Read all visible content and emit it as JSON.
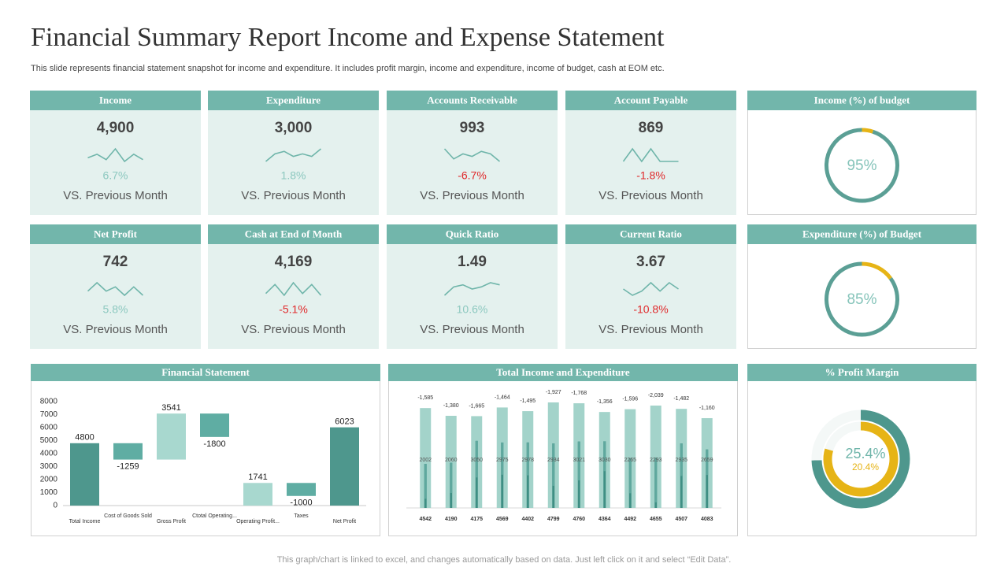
{
  "title": "Financial Summary Report Income and Expense Statement",
  "subtitle": "This slide represents financial statement snapshot for income and expenditure. It includes profit margin, income and expenditure, income of budget, cash at EOM  etc.",
  "kpis": [
    {
      "title": "Income",
      "value": 4900,
      "value_label": "4,900",
      "trend": [
        4,
        6,
        3,
        9,
        2,
        6,
        3
      ],
      "change": 6.7,
      "change_label": "6.7%",
      "caption": "VS. Previous Month"
    },
    {
      "title": "Expenditure",
      "value": 3000,
      "value_label": "3,000",
      "trend": [
        3,
        6,
        7,
        5,
        6,
        5,
        8
      ],
      "change": 1.8,
      "change_label": "1.8%",
      "caption": "VS. Previous Month"
    },
    {
      "title": "Accounts Receivable",
      "value": 993,
      "trend": [
        8,
        4,
        6,
        5,
        7,
        6,
        3
      ],
      "change": -6.7,
      "change_label": "-6.7%",
      "caption": "VS. Previous Month"
    },
    {
      "title": "Account Payable",
      "value": 869,
      "trend": [
        5,
        6,
        5,
        6,
        5,
        5,
        5
      ],
      "change": -1.8,
      "change_label": "-1.8%",
      "caption": "VS. Previous Month"
    },
    {
      "title": "Net Profit",
      "value": 742,
      "trend": [
        5,
        7,
        5,
        6,
        4,
        6,
        4
      ],
      "change": 5.8,
      "change_label": "5.8%",
      "caption": "VS. Previous Month"
    },
    {
      "title": "Cash at End of Month",
      "value": 4169,
      "value_label": "4,169",
      "trend": [
        3,
        8,
        2,
        9,
        3,
        8,
        2
      ],
      "change": -5.1,
      "change_label": "-5.1%",
      "caption": "VS. Previous Month"
    },
    {
      "title": "Quick Ratio",
      "value": 1.49,
      "trend": [
        2,
        6,
        7,
        5,
        6,
        8,
        7
      ],
      "change": 10.6,
      "change_label": "10.6%",
      "caption": "VS. Previous Month"
    },
    {
      "title": "Current Ratio",
      "value": 3.67,
      "trend": [
        5,
        2,
        4,
        8,
        4,
        8,
        5
      ],
      "change": -10.8,
      "change_label": "-10.8%",
      "caption": "VS. Previous Month"
    }
  ],
  "gauges": [
    {
      "title": "Income (%) of budget",
      "value": 95,
      "value_label": "95%",
      "color": "#5b9f95",
      "rest_color": "#e6b416"
    },
    {
      "title": "Expenditure (%) of Budget",
      "value": 85,
      "value_label": "85%",
      "color": "#5b9f95",
      "rest_color": "#e6b416"
    }
  ],
  "chart_data": [
    {
      "type": "waterfall",
      "title": "Financial Statement",
      "categories": [
        "Total Income",
        "Cost of Goods Sold",
        "Gross Profit",
        "Ctotal Operating...",
        "Operating Profit...",
        "Taxes",
        "Net Profit"
      ],
      "values": [
        4800,
        -1259,
        3541,
        -1800,
        1741,
        -1000,
        6023
      ],
      "totals": [
        true,
        false,
        false,
        false,
        true,
        false,
        true
      ],
      "colors": [
        "#4e978d",
        "#5fada3",
        "#a8d8cf",
        "#5fada3",
        "#a8d8cf",
        "#5fada3",
        "#4e978d"
      ],
      "ylim": [
        0,
        8000
      ],
      "yticks": [
        0,
        1000,
        2000,
        3000,
        4000,
        5000,
        6000,
        7000,
        8000
      ]
    },
    {
      "type": "bar",
      "title": "Total Income and Expenditure",
      "series": [
        {
          "color": "#a3d3ca",
          "values": [
            4542,
            4190,
            4175,
            4569,
            4402,
            4799,
            4760,
            4364,
            4492,
            4655,
            4507,
            4083
          ]
        },
        {
          "color": "#3f8f84",
          "values": [
            2002,
            2060,
            3050,
            2975,
            2978,
            2934,
            3021,
            3030,
            2265,
            2293,
            2935,
            2659
          ]
        },
        {
          "color": "#5fa89e",
          "values": [
            -1585,
            -1380,
            -1665,
            -1464,
            -1495,
            -1927,
            -1768,
            -1356,
            -1596,
            -2039,
            -1482,
            -1160
          ],
          "value_labels": [
            "-1,585",
            "-1,380",
            "-1,665",
            "-1,464",
            "-1,495",
            "-1,927",
            "-1,768",
            "-1,356",
            "-1,596",
            "-2,039",
            "-1,482",
            "-1,160"
          ]
        }
      ]
    },
    {
      "type": "donut",
      "title": "% Profit Margin",
      "values": [
        25.4,
        20.4
      ],
      "value_labels": [
        "25.4%",
        "20.4%"
      ],
      "colors": [
        "#4e978d",
        "#e6b416"
      ]
    }
  ],
  "footer": "This graph/chart is linked to excel,  and changes automatically based on data. Just left click on it and select “Edit Data”."
}
